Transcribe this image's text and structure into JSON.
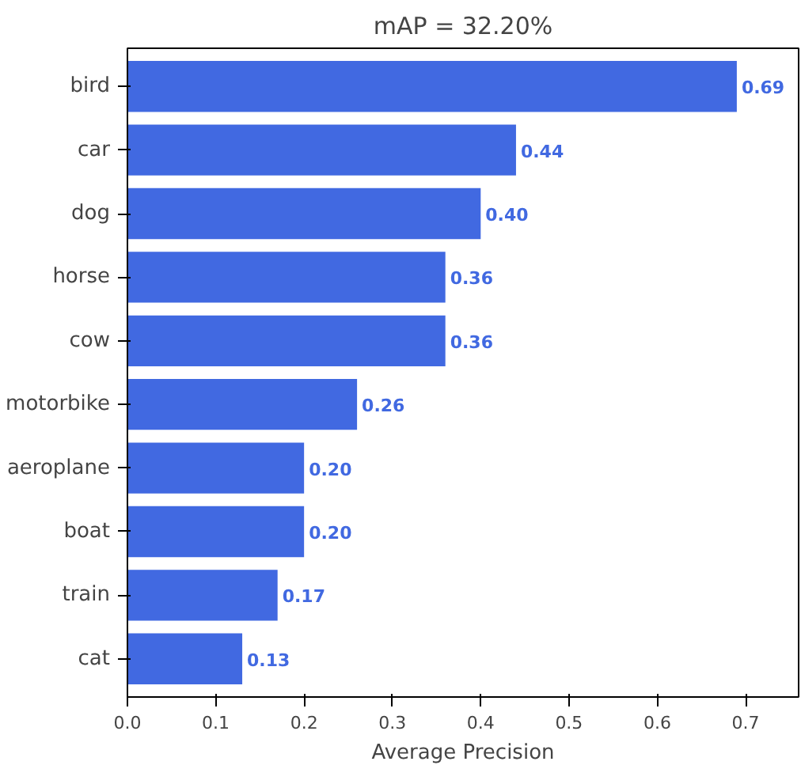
{
  "chart_data": {
    "type": "bar",
    "orientation": "horizontal",
    "title": "mAP = 32.20%",
    "xlabel": "Average Precision",
    "categories": [
      "bird",
      "car",
      "dog",
      "horse",
      "cow",
      "motorbike",
      "aeroplane",
      "boat",
      "train",
      "cat"
    ],
    "values": [
      0.69,
      0.44,
      0.4,
      0.36,
      0.36,
      0.26,
      0.2,
      0.2,
      0.17,
      0.13
    ],
    "value_labels": [
      "0.69",
      "0.44",
      "0.40",
      "0.36",
      "0.36",
      "0.26",
      "0.20",
      "0.20",
      "0.17",
      "0.13"
    ],
    "color": "#4169e1",
    "xlim": [
      0,
      0.76
    ],
    "xticks": [
      {
        "value": 0,
        "label": "0.0"
      },
      0.1,
      0.2,
      0.3,
      0.4,
      0.5,
      0.6,
      0.7
    ],
    "grid": false
  }
}
